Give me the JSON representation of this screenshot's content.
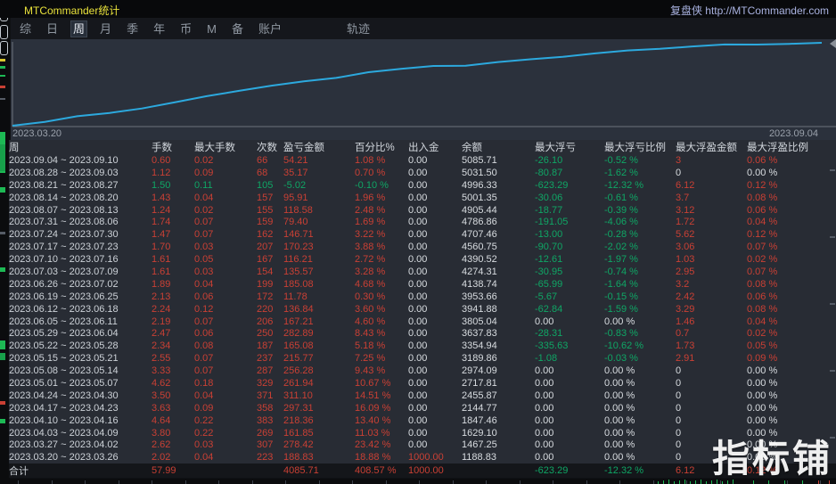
{
  "window": {
    "title": "MTCommander统计",
    "brand": "复盘侠 http://MTCommander.com"
  },
  "menu": {
    "items": [
      {
        "label": "综",
        "active": false
      },
      {
        "label": "日",
        "active": false
      },
      {
        "label": "周",
        "active": true
      },
      {
        "label": "月",
        "active": false
      },
      {
        "label": "季",
        "active": false
      },
      {
        "label": "年",
        "active": false
      },
      {
        "label": "币",
        "active": false
      },
      {
        "label": "M",
        "active": false
      },
      {
        "label": "备",
        "active": false
      },
      {
        "label": "账户",
        "active": false
      },
      {
        "label": "轨迹",
        "active": false,
        "track": true
      }
    ]
  },
  "chart_data": {
    "type": "line",
    "x_start_label": "2023.03.20",
    "x_end_label": "2023.09.04",
    "x_dates": [
      "2023.03.20",
      "2023.03.26",
      "2023.04.02",
      "2023.04.09",
      "2023.04.16",
      "2023.04.23",
      "2023.04.30",
      "2023.05.07",
      "2023.05.14",
      "2023.05.21",
      "2023.05.28",
      "2023.06.04",
      "2023.06.11",
      "2023.06.18",
      "2023.06.25",
      "2023.07.02",
      "2023.07.09",
      "2023.07.16",
      "2023.07.23",
      "2023.07.30",
      "2023.08.06",
      "2023.08.13",
      "2023.08.20",
      "2023.08.27",
      "2023.09.03",
      "2023.09.10"
    ],
    "values": [
      1000.0,
      1188.83,
      1467.25,
      1629.1,
      1847.46,
      2144.77,
      2455.87,
      2717.81,
      2974.09,
      3189.86,
      3354.94,
      3637.83,
      3805.04,
      3941.88,
      3953.66,
      4138.74,
      4274.31,
      4390.52,
      4560.75,
      4707.46,
      4786.86,
      4905.44,
      5001.35,
      4996.33,
      5031.5,
      5085.71
    ],
    "ylim": [
      1000,
      5085.71
    ],
    "ylabel": "余额",
    "grid": false,
    "legend": "none",
    "line_color": "#2ca9de"
  },
  "table": {
    "headers": [
      "周",
      "手数",
      "最大手数",
      "次数",
      "盈亏金额",
      "百分比%",
      "出入金",
      "余额",
      "最大浮亏",
      "最大浮亏比例",
      "最大浮盈金额",
      "最大浮盈比例"
    ],
    "rows": [
      {
        "date": "2023.09.04 ~ 2023.09.10",
        "values": [
          "0.60",
          "0.02",
          "66",
          "54.21",
          "1.08 %",
          "0.00",
          "5085.71",
          "-26.10",
          "-0.52 %",
          "3",
          "0.06 %"
        ],
        "colors": "rrrrrwwggrr"
      },
      {
        "date": "2023.08.28 ~ 2023.09.03",
        "values": [
          "1.12",
          "0.09",
          "68",
          "35.17",
          "0.70 %",
          "0.00",
          "5031.50",
          "-80.87",
          "-1.62 %",
          "0",
          "0.00 %"
        ],
        "colors": "rrrrrwwggww"
      },
      {
        "date": "2023.08.21 ~ 2023.08.27",
        "values": [
          "1.50",
          "0.11",
          "105",
          "-5.02",
          "-0.10 %",
          "0.00",
          "4996.33",
          "-623.29",
          "-12.32 %",
          "6.12",
          "0.12 %"
        ],
        "colors": "gggggwwggrr"
      },
      {
        "date": "2023.08.14 ~ 2023.08.20",
        "values": [
          "1.43",
          "0.04",
          "157",
          "95.91",
          "1.96 %",
          "0.00",
          "5001.35",
          "-30.06",
          "-0.61 %",
          "3.7",
          "0.08 %"
        ],
        "colors": "rrrrrwwggrr"
      },
      {
        "date": "2023.08.07 ~ 2023.08.13",
        "values": [
          "1.24",
          "0.02",
          "155",
          "118.58",
          "2.48 %",
          "0.00",
          "4905.44",
          "-18.77",
          "-0.39 %",
          "3.12",
          "0.06 %"
        ],
        "colors": "rrrrrwwggrr"
      },
      {
        "date": "2023.07.31 ~ 2023.08.06",
        "values": [
          "1.74",
          "0.07",
          "159",
          "79.40",
          "1.69 %",
          "0.00",
          "4786.86",
          "-191.05",
          "-4.06 %",
          "1.72",
          "0.04 %"
        ],
        "colors": "rrrrrwwggrr"
      },
      {
        "date": "2023.07.24 ~ 2023.07.30",
        "values": [
          "1.47",
          "0.07",
          "162",
          "146.71",
          "3.22 %",
          "0.00",
          "4707.46",
          "-13.00",
          "-0.28 %",
          "5.62",
          "0.12 %"
        ],
        "colors": "rrrrrwwggrr"
      },
      {
        "date": "2023.07.17 ~ 2023.07.23",
        "values": [
          "1.70",
          "0.03",
          "207",
          "170.23",
          "3.88 %",
          "0.00",
          "4560.75",
          "-90.70",
          "-2.02 %",
          "3.06",
          "0.07 %"
        ],
        "colors": "rrrrrwwggrr"
      },
      {
        "date": "2023.07.10 ~ 2023.07.16",
        "values": [
          "1.61",
          "0.05",
          "167",
          "116.21",
          "2.72 %",
          "0.00",
          "4390.52",
          "-12.61",
          "-1.97 %",
          "1.03",
          "0.02 %"
        ],
        "colors": "rrrrrwwggrr"
      },
      {
        "date": "2023.07.03 ~ 2023.07.09",
        "values": [
          "1.61",
          "0.03",
          "154",
          "135.57",
          "3.28 %",
          "0.00",
          "4274.31",
          "-30.95",
          "-0.74 %",
          "2.95",
          "0.07 %"
        ],
        "colors": "rrrrrwwggrr"
      },
      {
        "date": "2023.06.26 ~ 2023.07.02",
        "values": [
          "1.89",
          "0.04",
          "199",
          "185.08",
          "4.68 %",
          "0.00",
          "4138.74",
          "-65.99",
          "-1.64 %",
          "3.2",
          "0.08 %"
        ],
        "colors": "rrrrrwwggrr"
      },
      {
        "date": "2023.06.19 ~ 2023.06.25",
        "values": [
          "2.13",
          "0.06",
          "172",
          "11.78",
          "0.30 %",
          "0.00",
          "3953.66",
          "-5.67",
          "-0.15 %",
          "2.42",
          "0.06 %"
        ],
        "colors": "rrrrrwwggrr"
      },
      {
        "date": "2023.06.12 ~ 2023.06.18",
        "values": [
          "2.24",
          "0.12",
          "220",
          "136.84",
          "3.60 %",
          "0.00",
          "3941.88",
          "-62.84",
          "-1.59 %",
          "3.29",
          "0.08 %"
        ],
        "colors": "rrrrrwwggrr"
      },
      {
        "date": "2023.06.05 ~ 2023.06.11",
        "values": [
          "2.19",
          "0.07",
          "206",
          "167.21",
          "4.60 %",
          "0.00",
          "3805.04",
          "0.00",
          "0.00 %",
          "1.46",
          "0.04 %"
        ],
        "colors": "rrrrrwwwwrr"
      },
      {
        "date": "2023.05.29 ~ 2023.06.04",
        "values": [
          "2.47",
          "0.06",
          "250",
          "282.89",
          "8.43 %",
          "0.00",
          "3637.83",
          "-28.31",
          "-0.83 %",
          "0.7",
          "0.02 %"
        ],
        "colors": "rrrrrwwggrr"
      },
      {
        "date": "2023.05.22 ~ 2023.05.28",
        "values": [
          "2.34",
          "0.08",
          "187",
          "165.08",
          "5.18 %",
          "0.00",
          "3354.94",
          "-335.63",
          "-10.62 %",
          "1.73",
          "0.05 %"
        ],
        "colors": "rrrrrwwggrr"
      },
      {
        "date": "2023.05.15 ~ 2023.05.21",
        "values": [
          "2.55",
          "0.07",
          "237",
          "215.77",
          "7.25 %",
          "0.00",
          "3189.86",
          "-1.08",
          "-0.03 %",
          "2.91",
          "0.09 %"
        ],
        "colors": "rrrrrwwggrr"
      },
      {
        "date": "2023.05.08 ~ 2023.05.14",
        "values": [
          "3.33",
          "0.07",
          "287",
          "256.28",
          "9.43 %",
          "0.00",
          "2974.09",
          "0.00",
          "0.00 %",
          "0",
          "0.00 %"
        ],
        "colors": "rrrrrwwwwww"
      },
      {
        "date": "2023.05.01 ~ 2023.05.07",
        "values": [
          "4.62",
          "0.18",
          "329",
          "261.94",
          "10.67 %",
          "0.00",
          "2717.81",
          "0.00",
          "0.00 %",
          "0",
          "0.00 %"
        ],
        "colors": "rrrrrwwwwww"
      },
      {
        "date": "2023.04.24 ~ 2023.04.30",
        "values": [
          "3.50",
          "0.04",
          "371",
          "311.10",
          "14.51 %",
          "0.00",
          "2455.87",
          "0.00",
          "0.00 %",
          "0",
          "0.00 %"
        ],
        "colors": "rrrrrwwwwww"
      },
      {
        "date": "2023.04.17 ~ 2023.04.23",
        "values": [
          "3.63",
          "0.09",
          "358",
          "297.31",
          "16.09 %",
          "0.00",
          "2144.77",
          "0.00",
          "0.00 %",
          "0",
          "0.00 %"
        ],
        "colors": "rrrrrwwwwww"
      },
      {
        "date": "2023.04.10 ~ 2023.04.16",
        "values": [
          "4.64",
          "0.22",
          "383",
          "218.36",
          "13.40 %",
          "0.00",
          "1847.46",
          "0.00",
          "0.00 %",
          "0",
          "0.00 %"
        ],
        "colors": "rrrrrwwwwww"
      },
      {
        "date": "2023.04.03 ~ 2023.04.09",
        "values": [
          "3.80",
          "0.22",
          "269",
          "161.85",
          "11.03 %",
          "0.00",
          "1629.10",
          "0.00",
          "0.00 %",
          "0",
          "0.00 %"
        ],
        "colors": "rrrrrwwwwww"
      },
      {
        "date": "2023.03.27 ~ 2023.04.02",
        "values": [
          "2.62",
          "0.03",
          "307",
          "278.42",
          "23.42 %",
          "0.00",
          "1467.25",
          "0.00",
          "0.00 %",
          "0",
          "0.00 %"
        ],
        "colors": "rrrrrwwwwww"
      },
      {
        "date": "2023.03.20 ~ 2023.03.26",
        "values": [
          "2.02",
          "0.04",
          "223",
          "188.83",
          "18.88 %",
          "1000.00",
          "1188.83",
          "0.00",
          "0.00 %",
          "0",
          "0.00 %"
        ],
        "colors": "rrrrrrwwwww"
      }
    ],
    "total": {
      "label": "合计",
      "values": [
        "57.99",
        "",
        "",
        "4085.71",
        "408.57 %",
        "1000.00",
        "",
        "-623.29",
        "-12.32 %",
        "6.12",
        "0.12 %"
      ],
      "colors": "r--rrr-ggrr"
    }
  },
  "watermark": "指标铺",
  "colors": {
    "red": "#c94034",
    "green": "#0fa665",
    "white": "#d8dce0",
    "gray": "#cdd2d8",
    "line": "#2ca9de",
    "title_yellow": "#e9e23b",
    "brand_blue": "#a9b2e0",
    "chart_bg": "#2b313c",
    "table_bg": "#282c34"
  }
}
